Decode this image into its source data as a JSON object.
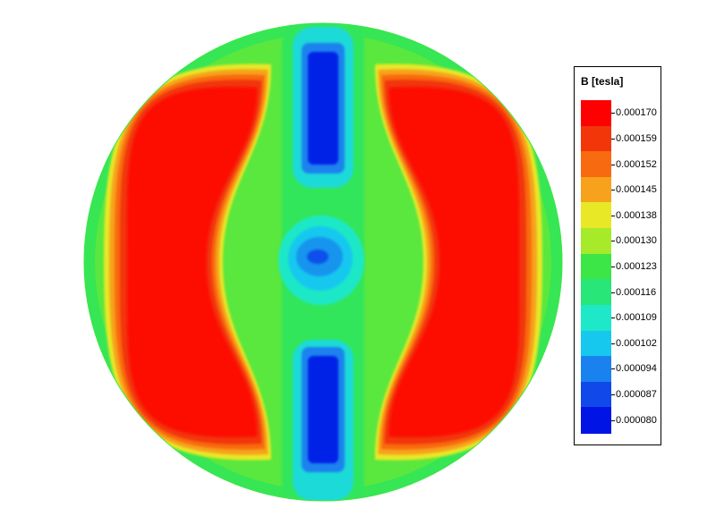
{
  "chart_data": {
    "type": "heatmap",
    "plot": "circular cross-section contour map of magnetic flux density",
    "colorbar": {
      "title": "B [tesla]",
      "levels": [
        "0.000170",
        "0.000159",
        "0.000152",
        "0.000145",
        "0.000138",
        "0.000130",
        "0.000123",
        "0.000116",
        "0.000109",
        "0.000102",
        "0.000094",
        "0.000087",
        "0.000080"
      ],
      "level_values": [
        0.00017,
        0.000159,
        0.000152,
        0.000145,
        0.000138,
        0.00013,
        0.000123,
        0.000116,
        0.000109,
        0.000102,
        9.4e-05,
        8.7e-05,
        8e-05
      ],
      "colors": [
        "#ff0000",
        "#f2360a",
        "#f86a10",
        "#f7a21c",
        "#e8e826",
        "#a6ea2a",
        "#3ce646",
        "#28e678",
        "#1ee8c8",
        "#16c8ee",
        "#1a82ee",
        "#1048ea",
        "#0014e6"
      ],
      "min": 8e-05,
      "max": 0.00017
    },
    "field_regions": [
      {
        "name": "outer-rim",
        "value": 0.000125
      },
      {
        "name": "left-lobe",
        "value": 0.000168
      },
      {
        "name": "right-lobe",
        "value": 0.000168
      },
      {
        "name": "upper-slot",
        "value": 8.2e-05
      },
      {
        "name": "lower-slot",
        "value": 8.2e-05
      },
      {
        "name": "center-hole",
        "value": 9.2e-05
      }
    ]
  }
}
